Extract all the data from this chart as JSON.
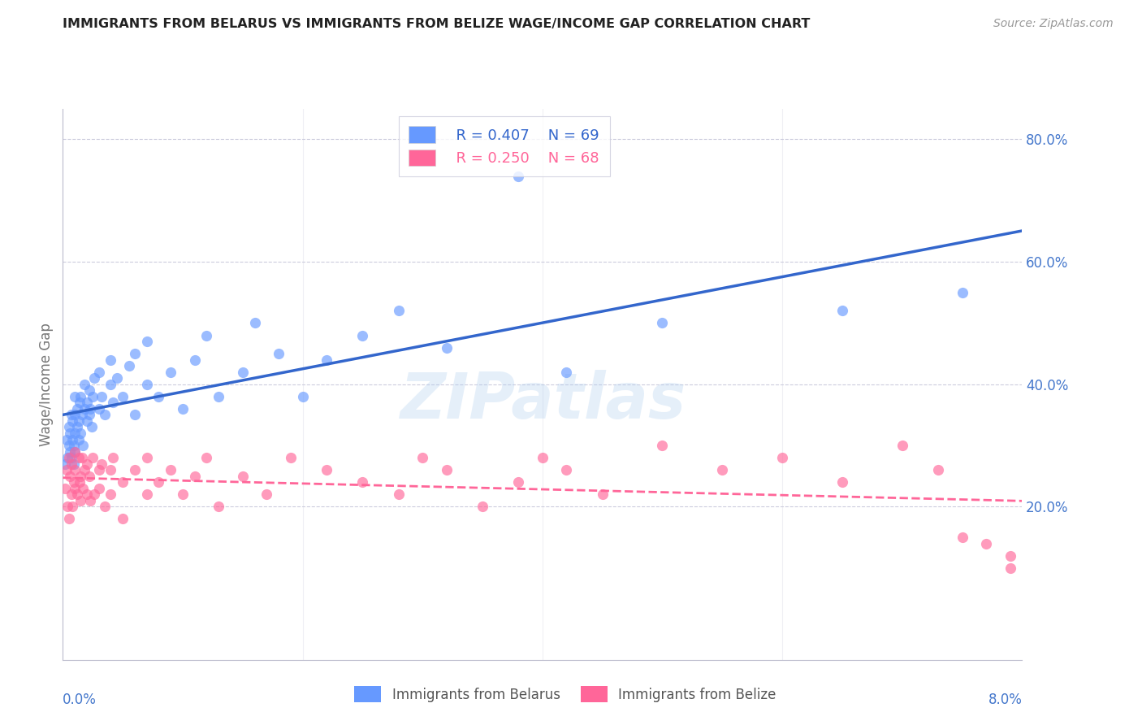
{
  "title": "IMMIGRANTS FROM BELARUS VS IMMIGRANTS FROM BELIZE WAGE/INCOME GAP CORRELATION CHART",
  "source": "Source: ZipAtlas.com",
  "ylabel": "Wage/Income Gap",
  "x_min": 0.0,
  "x_max": 0.08,
  "y_min": -0.05,
  "y_max": 0.85,
  "y_ticks": [
    0.2,
    0.4,
    0.6,
    0.8
  ],
  "y_tick_labels": [
    "20.0%",
    "40.0%",
    "60.0%",
    "80.0%"
  ],
  "x_tick_positions": [
    0.0,
    0.02,
    0.04,
    0.06,
    0.08
  ],
  "legend_r1": "R = 0.407",
  "legend_n1": "N = 69",
  "legend_r2": "R = 0.250",
  "legend_n2": "N = 68",
  "color_belarus": "#6699FF",
  "color_belize": "#FF6699",
  "color_trend_belarus": "#3366CC",
  "color_trend_belize": "#FF6699",
  "color_axis": "#4477CC",
  "color_grid": "#CCCCDD",
  "watermark": "ZIPatlas",
  "belarus_x": [
    0.0002,
    0.0003,
    0.0004,
    0.0005,
    0.0005,
    0.0006,
    0.0006,
    0.0007,
    0.0007,
    0.0008,
    0.0008,
    0.0009,
    0.0009,
    0.001,
    0.001,
    0.001,
    0.001,
    0.0012,
    0.0012,
    0.0013,
    0.0013,
    0.0014,
    0.0015,
    0.0015,
    0.0016,
    0.0017,
    0.0018,
    0.0018,
    0.002,
    0.002,
    0.0022,
    0.0022,
    0.0023,
    0.0024,
    0.0025,
    0.0026,
    0.003,
    0.003,
    0.0032,
    0.0035,
    0.004,
    0.004,
    0.0042,
    0.0045,
    0.005,
    0.0055,
    0.006,
    0.006,
    0.007,
    0.007,
    0.008,
    0.009,
    0.01,
    0.011,
    0.012,
    0.013,
    0.015,
    0.016,
    0.018,
    0.02,
    0.022,
    0.025,
    0.028,
    0.032,
    0.038,
    0.042,
    0.05,
    0.065,
    0.075
  ],
  "belarus_y": [
    0.27,
    0.31,
    0.28,
    0.3,
    0.33,
    0.29,
    0.32,
    0.35,
    0.28,
    0.31,
    0.34,
    0.27,
    0.3,
    0.32,
    0.29,
    0.35,
    0.38,
    0.33,
    0.36,
    0.31,
    0.34,
    0.37,
    0.32,
    0.38,
    0.35,
    0.3,
    0.36,
    0.4,
    0.34,
    0.37,
    0.35,
    0.39,
    0.36,
    0.33,
    0.38,
    0.41,
    0.36,
    0.42,
    0.38,
    0.35,
    0.4,
    0.44,
    0.37,
    0.41,
    0.38,
    0.43,
    0.35,
    0.45,
    0.4,
    0.47,
    0.38,
    0.42,
    0.36,
    0.44,
    0.48,
    0.38,
    0.42,
    0.5,
    0.45,
    0.38,
    0.44,
    0.48,
    0.52,
    0.46,
    0.74,
    0.42,
    0.5,
    0.52,
    0.55
  ],
  "belize_x": [
    0.0002,
    0.0003,
    0.0004,
    0.0005,
    0.0005,
    0.0006,
    0.0007,
    0.0007,
    0.0008,
    0.0009,
    0.001,
    0.001,
    0.001,
    0.0012,
    0.0013,
    0.0014,
    0.0015,
    0.0015,
    0.0016,
    0.0017,
    0.0018,
    0.002,
    0.002,
    0.0022,
    0.0023,
    0.0025,
    0.0026,
    0.003,
    0.003,
    0.0032,
    0.0035,
    0.004,
    0.004,
    0.0042,
    0.005,
    0.005,
    0.006,
    0.007,
    0.007,
    0.008,
    0.009,
    0.01,
    0.011,
    0.012,
    0.013,
    0.015,
    0.017,
    0.019,
    0.022,
    0.025,
    0.028,
    0.03,
    0.032,
    0.035,
    0.038,
    0.04,
    0.042,
    0.045,
    0.05,
    0.055,
    0.06,
    0.065,
    0.07,
    0.073,
    0.075,
    0.077,
    0.079,
    0.079
  ],
  "belize_y": [
    0.23,
    0.26,
    0.2,
    0.28,
    0.18,
    0.25,
    0.22,
    0.27,
    0.2,
    0.24,
    0.29,
    0.23,
    0.26,
    0.22,
    0.28,
    0.24,
    0.25,
    0.21,
    0.28,
    0.23,
    0.26,
    0.22,
    0.27,
    0.25,
    0.21,
    0.28,
    0.22,
    0.26,
    0.23,
    0.27,
    0.2,
    0.26,
    0.22,
    0.28,
    0.24,
    0.18,
    0.26,
    0.22,
    0.28,
    0.24,
    0.26,
    0.22,
    0.25,
    0.28,
    0.2,
    0.25,
    0.22,
    0.28,
    0.26,
    0.24,
    0.22,
    0.28,
    0.26,
    0.2,
    0.24,
    0.28,
    0.26,
    0.22,
    0.3,
    0.26,
    0.28,
    0.24,
    0.3,
    0.26,
    0.15,
    0.14,
    0.12,
    0.1
  ]
}
